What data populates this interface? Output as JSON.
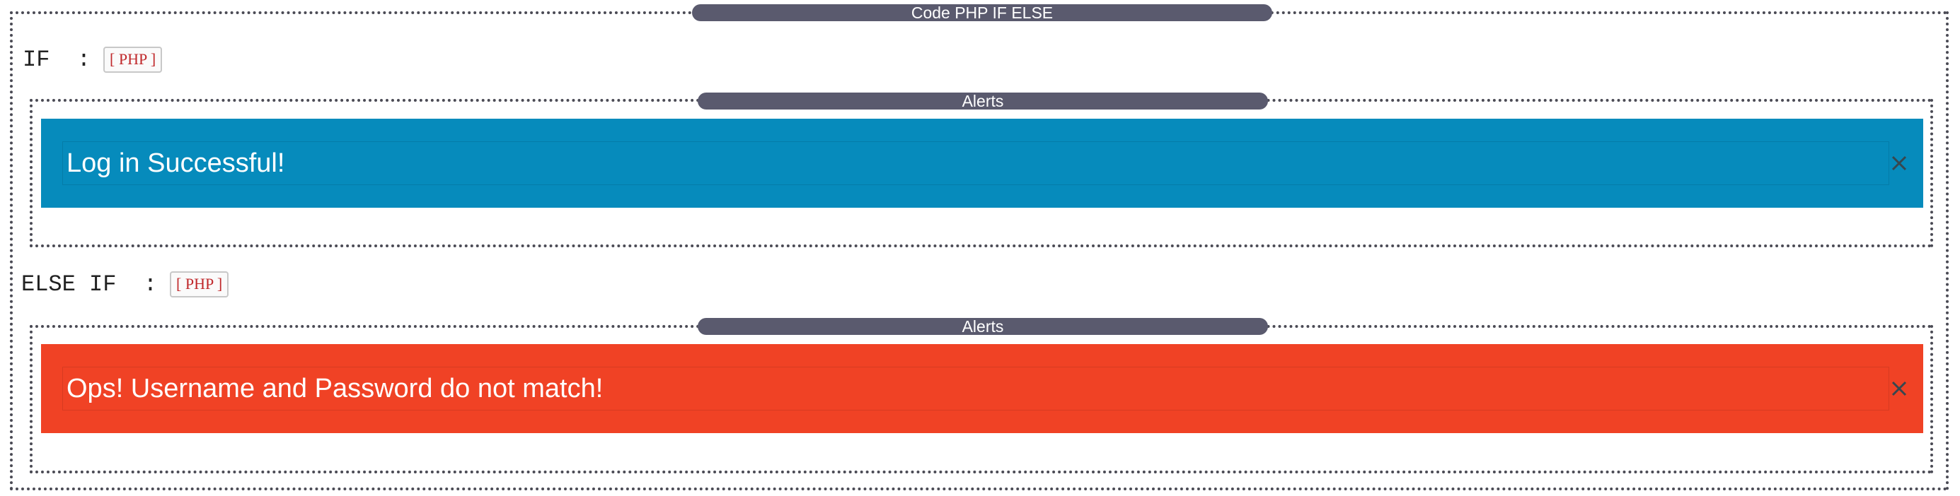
{
  "section": {
    "title": "Code PHP IF ELSE"
  },
  "if_block": {
    "label": "IF  :",
    "badge": "[ PHP ]",
    "alerts_title": "Alerts",
    "alert": {
      "type": "info",
      "message": "Log in Successful!",
      "color": "#068bbc"
    }
  },
  "else_if_block": {
    "label": "ELSE IF  :",
    "badge": "[ PHP ]",
    "alerts_title": "Alerts",
    "alert": {
      "type": "danger",
      "message": "Ops! Username and Password do not match!",
      "color": "#f04225"
    }
  },
  "icons": {
    "close": "close-icon"
  }
}
